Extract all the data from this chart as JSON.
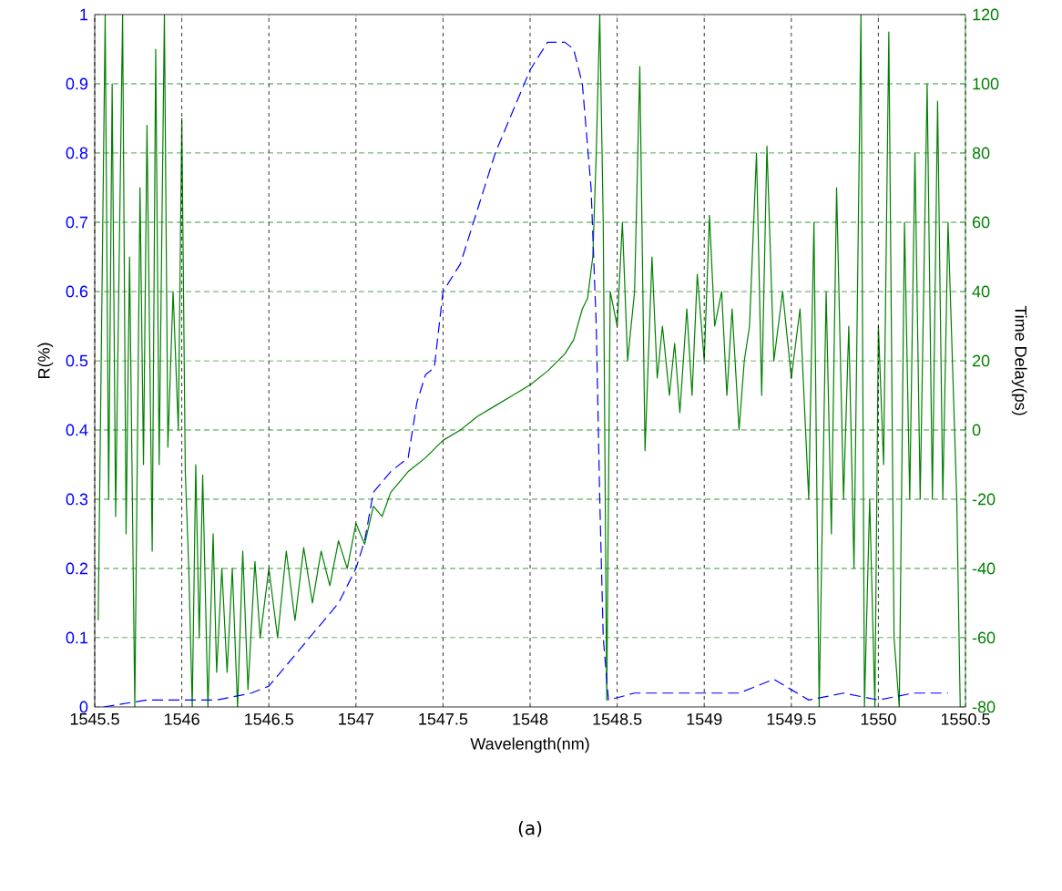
{
  "chart_data": {
    "type": "line",
    "xlabel": "Wavelength(nm)",
    "ylabel": "R(%)",
    "y2label": "Time Delay(ps)",
    "xlim": [
      1545.5,
      1550.5
    ],
    "xticks": [
      1545.5,
      1546,
      1546.5,
      1547,
      1547.5,
      1548,
      1548.5,
      1549,
      1549.5,
      1550,
      1550.5
    ],
    "ylim": [
      0,
      1
    ],
    "yticks": [
      0,
      0.1,
      0.2,
      0.3,
      0.4,
      0.5,
      0.6,
      0.7,
      0.8,
      0.9,
      1
    ],
    "y2lim": [
      -80,
      120
    ],
    "y2ticks": [
      -80,
      -60,
      -40,
      -20,
      0,
      20,
      40,
      60,
      80,
      100,
      120
    ],
    "grid": true,
    "annotations": [
      "(a)"
    ],
    "series": [
      {
        "color": "#0000ff",
        "line_style": "dashed",
        "x": [
          1545.55,
          1545.8,
          1546.0,
          1546.2,
          1546.4,
          1546.5,
          1546.6,
          1546.7,
          1546.8,
          1546.9,
          1547.0,
          1547.05,
          1547.1,
          1547.2,
          1547.3,
          1547.35,
          1547.4,
          1547.45,
          1547.5,
          1547.6,
          1547.7,
          1547.8,
          1547.9,
          1548.0,
          1548.1,
          1548.2,
          1548.25,
          1548.3,
          1548.35,
          1548.38,
          1548.4,
          1548.42,
          1548.45,
          1548.6,
          1548.8,
          1549.0,
          1549.2,
          1549.4,
          1549.6,
          1549.8,
          1550.0,
          1550.2,
          1550.4
        ],
        "values": [
          0.0,
          0.01,
          0.01,
          0.01,
          0.02,
          0.03,
          0.06,
          0.09,
          0.12,
          0.15,
          0.2,
          0.24,
          0.31,
          0.34,
          0.36,
          0.44,
          0.48,
          0.49,
          0.6,
          0.64,
          0.72,
          0.8,
          0.86,
          0.92,
          0.96,
          0.96,
          0.95,
          0.9,
          0.75,
          0.55,
          0.3,
          0.1,
          0.01,
          0.02,
          0.02,
          0.02,
          0.02,
          0.04,
          0.01,
          0.02,
          0.01,
          0.02,
          0.02
        ]
      },
      {
        "color": "#008000",
        "line_style": "solid",
        "axis": "y2",
        "x": [
          1545.52,
          1545.56,
          1545.58,
          1545.6,
          1545.62,
          1545.66,
          1545.68,
          1545.7,
          1545.73,
          1545.76,
          1545.78,
          1545.8,
          1545.83,
          1545.85,
          1545.87,
          1545.9,
          1545.92,
          1545.95,
          1545.98,
          1546.0,
          1546.02,
          1546.04,
          1546.06,
          1546.08,
          1546.1,
          1546.12,
          1546.15,
          1546.18,
          1546.2,
          1546.23,
          1546.26,
          1546.29,
          1546.32,
          1546.35,
          1546.38,
          1546.42,
          1546.45,
          1546.5,
          1546.55,
          1546.6,
          1546.65,
          1546.7,
          1546.75,
          1546.8,
          1546.85,
          1546.9,
          1546.95,
          1547.0,
          1547.05,
          1547.1,
          1547.15,
          1547.2,
          1547.3,
          1547.4,
          1547.5,
          1547.6,
          1547.7,
          1547.8,
          1547.9,
          1548.0,
          1548.1,
          1548.2,
          1548.25,
          1548.3,
          1548.33,
          1548.36,
          1548.38,
          1548.4,
          1548.42,
          1548.44,
          1548.46,
          1548.5,
          1548.53,
          1548.56,
          1548.6,
          1548.63,
          1548.66,
          1548.7,
          1548.73,
          1548.76,
          1548.8,
          1548.83,
          1548.86,
          1548.9,
          1548.93,
          1548.96,
          1549.0,
          1549.03,
          1549.06,
          1549.1,
          1549.13,
          1549.16,
          1549.2,
          1549.23,
          1549.26,
          1549.3,
          1549.33,
          1549.36,
          1549.4,
          1549.45,
          1549.5,
          1549.55,
          1549.6,
          1549.63,
          1549.66,
          1549.7,
          1549.73,
          1549.76,
          1549.8,
          1549.83,
          1549.86,
          1549.9,
          1549.92,
          1549.95,
          1549.98,
          1550.0,
          1550.03,
          1550.06,
          1550.09,
          1550.12,
          1550.15,
          1550.18,
          1550.21,
          1550.24,
          1550.28,
          1550.31,
          1550.34,
          1550.37,
          1550.4,
          1550.45,
          1550.47
        ],
        "values": [
          -55,
          120,
          -20,
          100,
          -25,
          120,
          -30,
          50,
          -80,
          70,
          -10,
          88,
          -35,
          110,
          -10,
          120,
          -5,
          40,
          0,
          90,
          -12,
          -40,
          -80,
          -10,
          -60,
          -13,
          -80,
          -30,
          -70,
          -40,
          -70,
          -40,
          -80,
          -35,
          -75,
          -38,
          -60,
          -40,
          -60,
          -35,
          -55,
          -34,
          -50,
          -35,
          -45,
          -32,
          -40,
          -27,
          -33,
          -22,
          -25,
          -18,
          -12,
          -8,
          -3,
          0,
          4,
          7,
          10,
          13,
          17,
          22,
          26,
          35,
          38,
          50,
          80,
          120,
          60,
          -78,
          40,
          30,
          60,
          20,
          40,
          105,
          -6,
          50,
          15,
          30,
          10,
          25,
          5,
          35,
          10,
          45,
          20,
          62,
          30,
          40,
          10,
          35,
          0,
          20,
          30,
          80,
          10,
          82,
          20,
          40,
          15,
          35,
          -20,
          60,
          -80,
          40,
          -30,
          70,
          -20,
          30,
          -40,
          120,
          -80,
          -20,
          -80,
          30,
          -10,
          115,
          -60,
          -80,
          60,
          -20,
          80,
          -20,
          100,
          -20,
          95,
          -20,
          60,
          -20,
          -80
        ]
      }
    ]
  }
}
